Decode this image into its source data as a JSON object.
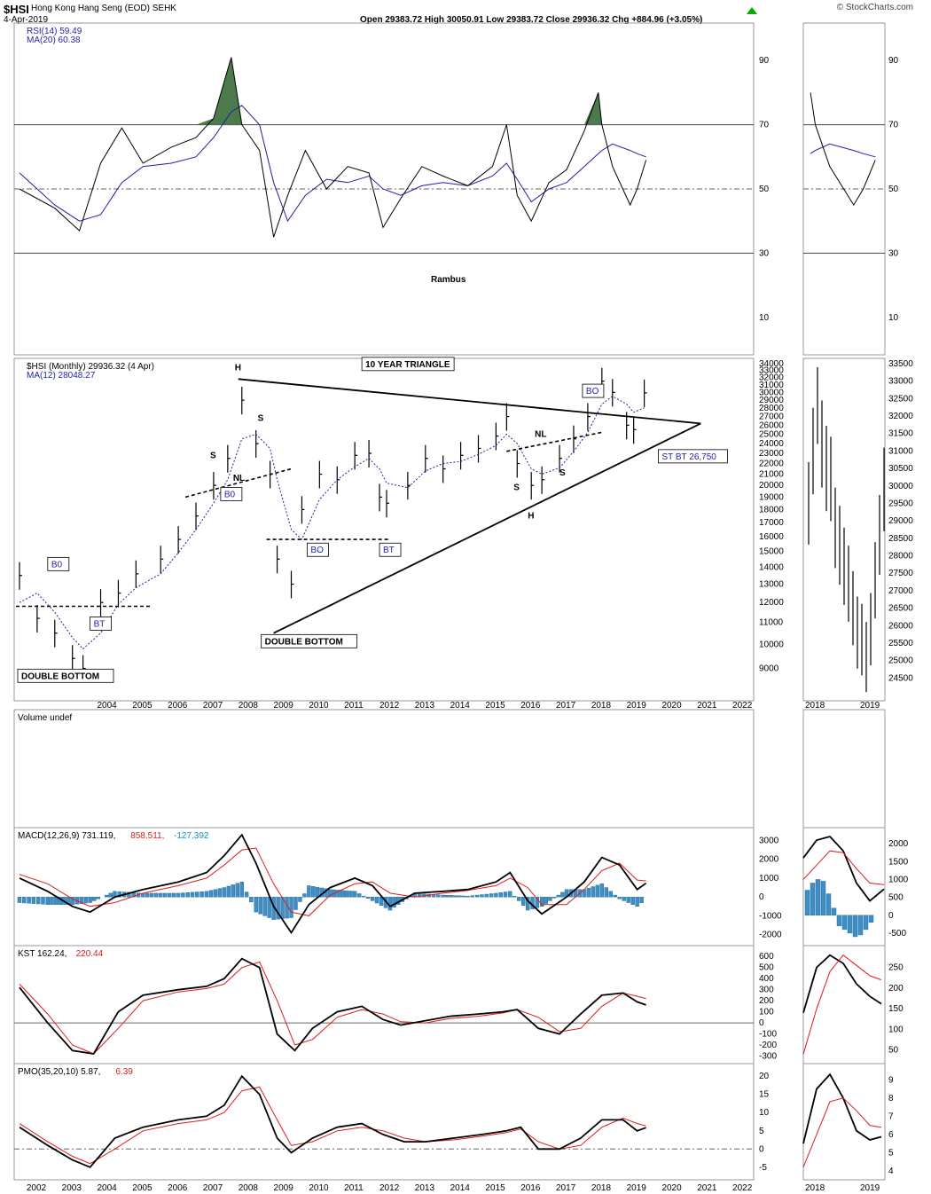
{
  "header": {
    "symbol": "$HSI",
    "name": "Hong Kong Hang Seng (EOD)  SEHK",
    "date": "4-Apr-2019",
    "ohlc": "Open 29383.72  High 30050.91  Low 29383.72  Close 29936.32  Chg +884.96 (+3.05%)",
    "brand": "© StockCharts.com",
    "up_color": "#00aa00"
  },
  "colors": {
    "price": "#000000",
    "ma": "#1f1fa8",
    "signal": "#e01b1b",
    "hist": "#3f8fc6",
    "rsi_fill": "#4c7a4c"
  },
  "chart_data": [
    {
      "id": "rsi",
      "type": "line",
      "legend": [
        "RSI(14) 59.49",
        "MA(20) 60.38"
      ],
      "watermark": "Rambus",
      "ylim": [
        0,
        100
      ],
      "yticks": [
        10,
        30,
        50,
        70,
        90
      ],
      "hlines": [
        30,
        50,
        70
      ],
      "x": [
        2001.5,
        2002.5,
        2003.2,
        2003.8,
        2004.4,
        2005.0,
        2005.8,
        2006.5,
        2007.0,
        2007.5,
        2007.8,
        2008.3,
        2008.7,
        2009.1,
        2009.6,
        2010.2,
        2010.8,
        2011.4,
        2011.8,
        2012.3,
        2012.9,
        2013.5,
        2014.2,
        2014.9,
        2015.3,
        2015.6,
        2016.0,
        2016.5,
        2017.0,
        2017.5,
        2017.9,
        2018.0,
        2018.3,
        2018.8,
        2019.0,
        2019.25
      ],
      "series": [
        {
          "values": [
            50,
            44,
            37,
            58,
            69,
            58,
            63,
            66,
            72,
            91,
            70,
            62,
            35,
            48,
            62,
            50,
            57,
            55,
            38,
            47,
            57,
            54,
            51,
            57,
            70,
            48,
            40,
            52,
            56,
            68,
            80,
            70,
            57,
            45,
            50,
            59
          ]
        },
        {
          "values": [
            55,
            45,
            40,
            42,
            52,
            57,
            58,
            60,
            66,
            74,
            76,
            70,
            52,
            40,
            48,
            53,
            52,
            54,
            50,
            48,
            51,
            52,
            51,
            54,
            58,
            53,
            46,
            50,
            52,
            57,
            61,
            62,
            64,
            62,
            61,
            60
          ]
        }
      ]
    },
    {
      "id": "price",
      "type": "bar",
      "legend": [
        "$HSI (Monthly) 29936.32 (4 Apr)",
        "MA(12) 28048.27"
      ],
      "ylim": [
        8000,
        34000
      ],
      "log": true,
      "yticks": [
        9000,
        10000,
        11000,
        12000,
        13000,
        14000,
        15000,
        16000,
        17000,
        18000,
        19000,
        20000,
        21000,
        22000,
        23000,
        24000,
        25000,
        26000,
        27000,
        28000,
        29000,
        30000,
        31000,
        32000,
        33000,
        34000
      ],
      "xticks": [
        "2004",
        "2005",
        "2006",
        "2007",
        "2008",
        "2009",
        "2010",
        "2011",
        "2012",
        "2013",
        "2014",
        "2015",
        "2016",
        "2017",
        "2018",
        "2019",
        "2020",
        "2021",
        "2022"
      ],
      "x": [
        2001.5,
        2002.0,
        2002.5,
        2003.0,
        2003.3,
        2003.8,
        2004.3,
        2004.8,
        2005.5,
        2006.0,
        2006.5,
        2007.0,
        2007.4,
        2007.8,
        2008.2,
        2008.6,
        2008.8,
        2009.2,
        2009.5,
        2010.0,
        2010.5,
        2011.0,
        2011.4,
        2011.7,
        2011.9,
        2012.5,
        2013.0,
        2013.5,
        2014.0,
        2014.5,
        2015.0,
        2015.3,
        2015.6,
        2016.0,
        2016.3,
        2016.8,
        2017.2,
        2017.6,
        2018.0,
        2018.3,
        2018.7,
        2018.9,
        2019.2
      ],
      "series": [
        {
          "name": "close",
          "values": [
            13500,
            11200,
            10500,
            9400,
            9000,
            12000,
            12500,
            13600,
            14500,
            15800,
            17500,
            20000,
            22500,
            29000,
            24000,
            21000,
            14500,
            13000,
            18000,
            21000,
            20500,
            22800,
            23000,
            19000,
            18500,
            20000,
            22500,
            21500,
            22800,
            23500,
            24800,
            27000,
            22000,
            20000,
            20500,
            22500,
            24500,
            27000,
            31500,
            30000,
            26000,
            25500,
            29936
          ]
        },
        {
          "name": "MA(12)",
          "values": [
            12000,
            12500,
            11500,
            10300,
            9800,
            10500,
            11900,
            12800,
            13600,
            14900,
            16500,
            18500,
            20500,
            24500,
            25000,
            23500,
            20500,
            16500,
            15800,
            18800,
            20500,
            21700,
            22500,
            21500,
            20200,
            19800,
            21300,
            22000,
            22200,
            22900,
            23800,
            25000,
            24000,
            21500,
            21000,
            21600,
            23200,
            25200,
            28500,
            29500,
            28500,
            27500,
            28048
          ]
        }
      ],
      "inset_ylim": [
        24000,
        33500
      ],
      "inset_yticks": [
        24500,
        25000,
        25500,
        26000,
        26500,
        27000,
        27500,
        28000,
        28500,
        29000,
        29500,
        30000,
        30500,
        31000,
        31500,
        32000,
        32500,
        33000,
        33500
      ],
      "annotations": [
        "10 YEAR TRIANGLE",
        "H",
        "S",
        "S",
        "NL",
        "B0",
        "B0",
        "BO",
        "BT",
        "BT",
        "DOUBLE BOTTOM",
        "DOUBLE BOTTOM",
        "H",
        "S",
        "S",
        "NL",
        "BO",
        "ST BT 26,750"
      ]
    },
    {
      "id": "volume",
      "type": "bar",
      "legend": [
        "Volume undef"
      ]
    },
    {
      "id": "macd",
      "type": "line",
      "legend": [
        "MACD(12,26,9) 731.119,",
        "858.511,",
        "-127.392"
      ],
      "ylim": [
        -2300,
        3400
      ],
      "yticks": [
        -2000,
        -1000,
        0,
        1000,
        2000,
        3000
      ],
      "inset_yticks": [
        -500,
        0,
        500,
        1000,
        1500,
        2000
      ],
      "x": [
        2001.5,
        2002.3,
        2003.0,
        2003.5,
        2004.2,
        2005.0,
        2006.0,
        2006.8,
        2007.3,
        2007.8,
        2008.2,
        2008.7,
        2009.2,
        2009.7,
        2010.3,
        2011.0,
        2011.5,
        2012.0,
        2012.7,
        2013.5,
        2014.2,
        2015.0,
        2015.4,
        2015.9,
        2016.3,
        2017.0,
        2017.5,
        2018.0,
        2018.5,
        2019.0,
        2019.25
      ],
      "series": [
        {
          "name": "MACD",
          "values": [
            1000,
            300,
            -500,
            -800,
            0,
            400,
            800,
            1300,
            2200,
            3300,
            1800,
            -500,
            -1900,
            -400,
            500,
            1000,
            600,
            -500,
            200,
            300,
            400,
            800,
            1300,
            -200,
            -900,
            0,
            800,
            2100,
            1700,
            400,
            731
          ]
        },
        {
          "name": "signal",
          "values": [
            1200,
            700,
            -100,
            -500,
            -300,
            200,
            600,
            1000,
            1700,
            2500,
            2600,
            700,
            -800,
            -1000,
            100,
            700,
            800,
            200,
            0,
            200,
            350,
            600,
            1000,
            500,
            -400,
            -400,
            400,
            1400,
            1800,
            900,
            858
          ]
        },
        {
          "name": "histogram",
          "values": [
            -300,
            -400,
            -400,
            -300,
            300,
            200,
            200,
            300,
            500,
            800,
            -800,
            -1200,
            -1100,
            600,
            400,
            300,
            -200,
            -700,
            200,
            100,
            50,
            200,
            300,
            -700,
            -500,
            400,
            400,
            700,
            -100,
            -500,
            -127
          ]
        }
      ]
    },
    {
      "id": "kst",
      "type": "line",
      "legend": [
        "KST 162.24,",
        "220.44"
      ],
      "ylim": [
        -320,
        650
      ],
      "yticks": [
        -300,
        -200,
        -100,
        0,
        100,
        200,
        300,
        400,
        500,
        600
      ],
      "inset_yticks": [
        50,
        100,
        150,
        200,
        250
      ],
      "x": [
        2001.5,
        2002.3,
        2003.0,
        2003.6,
        2004.3,
        2005.0,
        2006.0,
        2006.8,
        2007.3,
        2007.8,
        2008.3,
        2008.8,
        2009.3,
        2009.8,
        2010.5,
        2011.2,
        2011.8,
        2012.3,
        2013.0,
        2013.7,
        2014.5,
        2015.2,
        2015.6,
        2016.2,
        2016.8,
        2017.4,
        2018.0,
        2018.6,
        2019.0,
        2019.25
      ],
      "series": [
        {
          "name": "KST",
          "values": [
            320,
            0,
            -250,
            -280,
            100,
            250,
            300,
            330,
            400,
            580,
            500,
            -100,
            -250,
            -50,
            100,
            150,
            30,
            -20,
            20,
            60,
            80,
            100,
            120,
            -50,
            -100,
            80,
            250,
            270,
            190,
            162
          ]
        },
        {
          "name": "signal",
          "values": [
            350,
            80,
            -200,
            -280,
            -50,
            200,
            280,
            310,
            350,
            500,
            550,
            200,
            -200,
            -150,
            50,
            120,
            80,
            10,
            0,
            40,
            60,
            90,
            120,
            50,
            -80,
            -50,
            150,
            270,
            240,
            220
          ]
        }
      ]
    },
    {
      "id": "pmo",
      "type": "line",
      "legend": [
        "PMO(35,20,10) 5.87,",
        "6.39"
      ],
      "ylim": [
        -7,
        22
      ],
      "yticks": [
        -5,
        0,
        5,
        10,
        15,
        20
      ],
      "inset_yticks": [
        4,
        5,
        6,
        7,
        8,
        9
      ],
      "xticks": [
        "2002",
        "2003",
        "2004",
        "2005",
        "2006",
        "2007",
        "2008",
        "2009",
        "2010",
        "2011",
        "2012",
        "2013",
        "2014",
        "2015",
        "2016",
        "2017",
        "2018",
        "2019",
        "2020",
        "2021",
        "2022"
      ],
      "inset_xticks": [
        "2018",
        "2019"
      ],
      "x": [
        2001.5,
        2002.3,
        2003.0,
        2003.5,
        2004.2,
        2005.0,
        2006.0,
        2006.8,
        2007.3,
        2007.8,
        2008.3,
        2008.8,
        2009.2,
        2009.8,
        2010.5,
        2011.2,
        2011.8,
        2012.4,
        2013.0,
        2013.8,
        2014.6,
        2015.3,
        2015.7,
        2016.2,
        2016.8,
        2017.4,
        2018.0,
        2018.6,
        2019.0,
        2019.25
      ],
      "series": [
        {
          "name": "PMO",
          "values": [
            6,
            1,
            -3,
            -5,
            3,
            6,
            8,
            9,
            12,
            20,
            15,
            3,
            -1,
            3,
            6,
            7,
            4,
            2,
            2,
            3,
            4,
            5,
            6,
            0,
            0,
            3,
            8,
            8,
            5,
            5.87
          ]
        },
        {
          "name": "signal",
          "values": [
            7,
            2,
            -2,
            -4,
            0,
            5,
            7,
            8,
            10,
            16,
            17,
            8,
            1,
            2,
            5,
            6,
            5,
            3,
            2,
            2.5,
            3.5,
            4.5,
            5.5,
            2,
            0,
            1,
            6,
            8.5,
            7,
            6.39
          ]
        }
      ]
    }
  ]
}
